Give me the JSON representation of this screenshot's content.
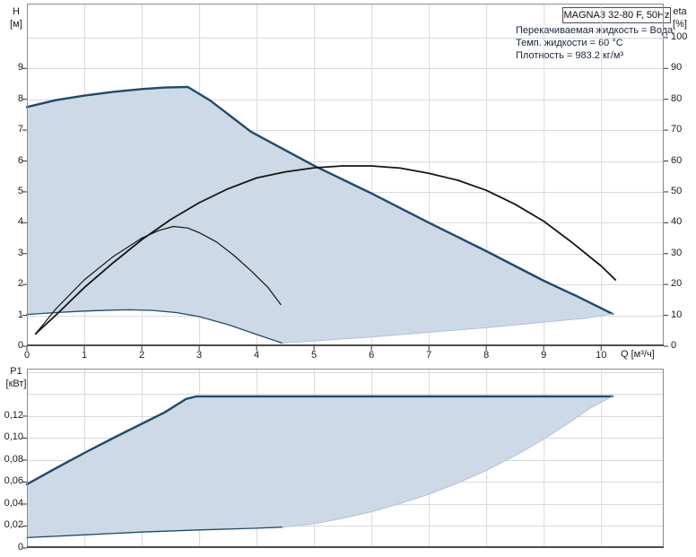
{
  "header": {
    "title_box": "MAGNA3 32-80 F, 50Hz",
    "info_lines": [
      "Перекачиваемая жидкость = Вода",
      "Темп. жидкости = 60 °C",
      "Плотность = 983.2 кг/м³"
    ]
  },
  "colors": {
    "envelope_fill": "#cdd9e7",
    "curve_blue": "#1f4a68",
    "curve_black": "#141414",
    "sweep_edge": "#b3c2d4",
    "grid": "#d9d9d9",
    "panel_border": "#8c8c8c",
    "axis_dark": "#4d4d4d",
    "tick": "#333333"
  },
  "chart_data": [
    {
      "type": "line",
      "name": "flow-head-efficiency-chart",
      "title": "MAGNA3 32-80 F, 50Hz",
      "grid": "on",
      "x": {
        "label": "Q",
        "unit_label": "Q [м³/ч]",
        "range": [
          0,
          11.09
        ],
        "ticks": [
          0,
          1,
          2,
          3,
          4,
          5,
          6,
          7,
          8,
          9,
          10
        ]
      },
      "y_left": {
        "label": "H",
        "unit": "[м]",
        "range": [
          0,
          11.1
        ],
        "ticks": [
          0,
          1,
          2,
          3,
          4,
          5,
          6,
          7,
          8,
          9
        ],
        "gridlines": [
          1,
          2,
          3,
          4,
          5,
          6,
          7,
          8,
          9,
          10
        ]
      },
      "y_right": {
        "label": "eta",
        "unit": "[%]",
        "range": [
          0,
          111
        ],
        "ticks": [
          0,
          10,
          20,
          30,
          40,
          50,
          60,
          70,
          80,
          90,
          100
        ]
      },
      "series": [
        {
          "name": "max-speed-head-curve",
          "scale": "h",
          "color": "blue",
          "width": 2.4,
          "points": [
            [
              0,
              7.75
            ],
            [
              0.5,
              7.97
            ],
            [
              1,
              8.12
            ],
            [
              1.5,
              8.24
            ],
            [
              2,
              8.33
            ],
            [
              2.4,
              8.38
            ],
            [
              2.8,
              8.4
            ],
            [
              3.2,
              7.95
            ],
            [
              3.9,
              6.95
            ],
            [
              5,
              5.85
            ],
            [
              6,
              4.95
            ],
            [
              7,
              4.0
            ],
            [
              8,
              3.08
            ],
            [
              9,
              2.12
            ],
            [
              9.6,
              1.6
            ],
            [
              10.2,
              1.05
            ]
          ]
        },
        {
          "name": "min-speed-head-curve",
          "scale": "h",
          "color": "blue",
          "width": 1.3,
          "points": [
            [
              0,
              1.03
            ],
            [
              0.5,
              1.09
            ],
            [
              1,
              1.14
            ],
            [
              1.5,
              1.17
            ],
            [
              1.8,
              1.18
            ],
            [
              2.2,
              1.16
            ],
            [
              2.6,
              1.09
            ],
            [
              3,
              0.96
            ],
            [
              3.5,
              0.7
            ],
            [
              4,
              0.38
            ],
            [
              4.45,
              0.1
            ]
          ]
        },
        {
          "name": "envelope-lower-sweep",
          "scale": "h",
          "color": "edge",
          "width": 1,
          "points": [
            [
              4.45,
              0.1
            ],
            [
              5,
              0.17
            ],
            [
              6,
              0.3
            ],
            [
              7,
              0.45
            ],
            [
              8,
              0.6
            ],
            [
              9,
              0.78
            ],
            [
              9.7,
              0.9
            ],
            [
              10.2,
              1.05
            ]
          ]
        },
        {
          "name": "efficiency-max-curve",
          "scale": "eta",
          "color": "black",
          "width": 1.8,
          "points": [
            [
              0.15,
              4
            ],
            [
              0.5,
              10
            ],
            [
              1,
              19
            ],
            [
              1.5,
              27
            ],
            [
              2,
              34.5
            ],
            [
              2.5,
              41
            ],
            [
              3,
              46.5
            ],
            [
              3.5,
              51
            ],
            [
              4,
              54.5
            ],
            [
              4.5,
              56.5
            ],
            [
              5,
              57.8
            ],
            [
              5.5,
              58.4
            ],
            [
              6,
              58.4
            ],
            [
              6.5,
              57.7
            ],
            [
              7,
              56
            ],
            [
              7.5,
              53.8
            ],
            [
              8,
              50.5
            ],
            [
              8.5,
              46
            ],
            [
              9,
              40.5
            ],
            [
              9.5,
              33.5
            ],
            [
              10,
              26
            ],
            [
              10.25,
              21.5
            ]
          ]
        },
        {
          "name": "efficiency-min-curve",
          "scale": "eta",
          "color": "black",
          "width": 1.2,
          "points": [
            [
              0.15,
              4
            ],
            [
              0.5,
              12
            ],
            [
              1,
              21.5
            ],
            [
              1.5,
              29
            ],
            [
              2,
              35
            ],
            [
              2.3,
              37.5
            ],
            [
              2.55,
              38.8
            ],
            [
              2.8,
              38.3
            ],
            [
              3,
              36.8
            ],
            [
              3.3,
              33.8
            ],
            [
              3.6,
              29.5
            ],
            [
              3.9,
              24.5
            ],
            [
              4.2,
              19
            ],
            [
              4.42,
              13.5
            ]
          ]
        }
      ],
      "envelope": {
        "top": "max-speed-head-curve",
        "bottom": [
          "min-speed-head-curve",
          "envelope-lower-sweep"
        ]
      }
    },
    {
      "type": "line",
      "name": "power-p1-chart",
      "grid": "on",
      "x": {
        "range": [
          0,
          11.09
        ],
        "ticks": [
          1,
          2,
          3,
          4,
          5,
          6,
          7,
          8,
          9,
          10
        ]
      },
      "y_left": {
        "label": "P1",
        "unit": "[кВт]",
        "range": [
          0,
          0.1632
        ],
        "ticks": [
          {
            "v": 0,
            "t": "0"
          },
          {
            "v": 0.02,
            "t": "0,02"
          },
          {
            "v": 0.04,
            "t": "0,04"
          },
          {
            "v": 0.06,
            "t": "0,06"
          },
          {
            "v": 0.08,
            "t": "0,08"
          },
          {
            "v": 0.1,
            "t": "0,10"
          },
          {
            "v": 0.12,
            "t": "0,12"
          }
        ],
        "gridlines": [
          0.02,
          0.04,
          0.06,
          0.08,
          0.1,
          0.12,
          0.14,
          0.16
        ]
      },
      "series": [
        {
          "name": "max-speed-power-curve",
          "scale": "p",
          "color": "blue",
          "width": 2.4,
          "points": [
            [
              0,
              0.058
            ],
            [
              0.5,
              0.0725
            ],
            [
              1,
              0.0865
            ],
            [
              1.5,
              0.1
            ],
            [
              2,
              0.113
            ],
            [
              2.4,
              0.1235
            ],
            [
              2.77,
              0.1355
            ],
            [
              2.95,
              0.138
            ],
            [
              5,
              0.138
            ],
            [
              8,
              0.138
            ],
            [
              10.2,
              0.138
            ]
          ]
        },
        {
          "name": "min-speed-power-curve",
          "scale": "p",
          "color": "blue",
          "width": 1.3,
          "points": [
            [
              0,
              0.0095
            ],
            [
              1,
              0.012
            ],
            [
              2,
              0.0145
            ],
            [
              3,
              0.0165
            ],
            [
              4,
              0.018
            ],
            [
              4.45,
              0.019
            ]
          ]
        },
        {
          "name": "envelope-lower-sweep",
          "scale": "p",
          "color": "edge",
          "width": 1,
          "points": [
            [
              4.45,
              0.019
            ],
            [
              5,
              0.022
            ],
            [
              5.5,
              0.027
            ],
            [
              6,
              0.033
            ],
            [
              6.5,
              0.0405
            ],
            [
              7,
              0.049
            ],
            [
              7.5,
              0.059
            ],
            [
              8,
              0.0705
            ],
            [
              8.5,
              0.084
            ],
            [
              9,
              0.099
            ],
            [
              9.5,
              0.116
            ],
            [
              9.8,
              0.127
            ],
            [
              10.05,
              0.134
            ],
            [
              10.2,
              0.138
            ]
          ]
        }
      ],
      "envelope": {
        "top": "max-speed-power-curve",
        "bottom": [
          "min-speed-power-curve",
          "envelope-lower-sweep"
        ]
      }
    }
  ]
}
